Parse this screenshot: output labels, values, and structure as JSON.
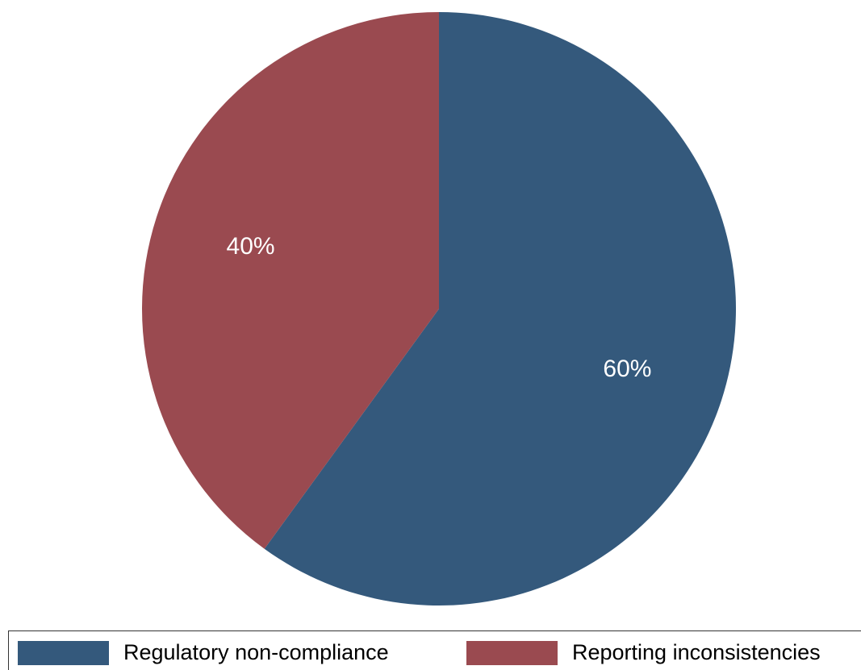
{
  "chart_data": {
    "type": "pie",
    "categories": [
      "Regulatory non-compliance",
      "Reporting inconsistencies"
    ],
    "values": [
      60,
      40
    ],
    "value_labels": [
      "60%",
      "40%"
    ],
    "colors": [
      "#34597c",
      "#9a4a50"
    ],
    "legend": "bottom"
  }
}
